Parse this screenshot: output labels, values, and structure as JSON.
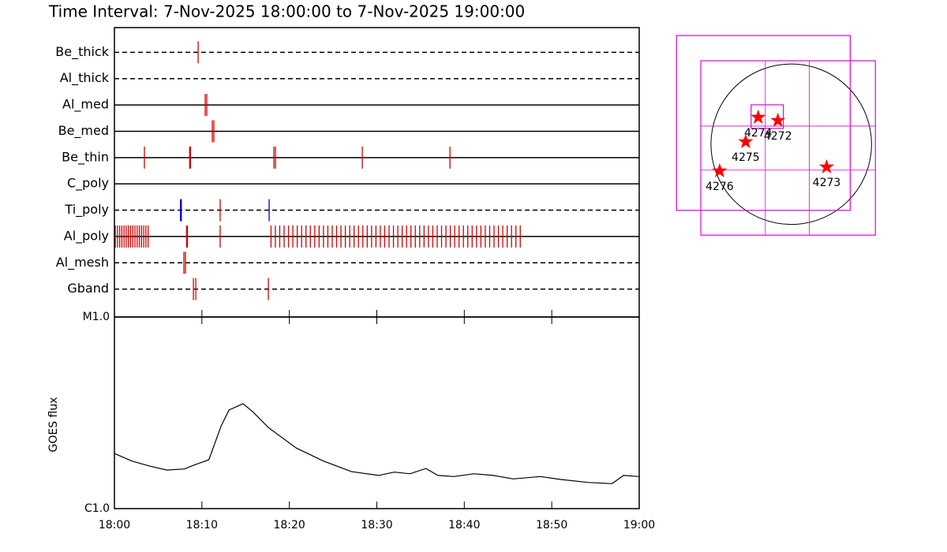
{
  "chart_data": [
    {
      "type": "timeline",
      "title": "Time Interval:  7-Nov-2025 18:00:00 to  7-Nov-2025 19:00:00",
      "xlim": [
        0,
        60
      ],
      "color": "#d00000",
      "rows": [
        {
          "name": "Be_thick",
          "line": "dashed",
          "events": [
            9.57
          ]
        },
        {
          "name": "Al_thick",
          "line": "dashed",
          "events": []
        },
        {
          "name": "Al_med",
          "line": "solid",
          "events": [
            10.38,
            10.56
          ]
        },
        {
          "name": "Be_med",
          "line": "solid",
          "events": [
            11.19,
            11.37
          ]
        },
        {
          "name": "Be_thin",
          "line": "solid",
          "events": [
            3.43,
            8.6,
            8.7,
            18.23,
            18.41,
            28.34,
            38.36
          ]
        },
        {
          "name": "C_poly",
          "line": "solid",
          "events": []
        },
        {
          "name": "Ti_poly",
          "line": "dashed",
          "events": [
            7.55,
            7.65,
            12.09,
            17.69
          ],
          "event_colors": [
            "#0000cc",
            "#0000cc",
            "#d00000",
            "#0000cc"
          ]
        },
        {
          "name": "Al_poly",
          "line": "solid",
          "events": [
            0.1,
            0.35,
            0.6,
            0.85,
            1.1,
            1.35,
            1.6,
            1.85,
            2.1,
            2.35,
            2.6,
            2.85,
            3.1,
            3.35,
            3.6,
            3.85,
            8.25,
            8.35,
            12.09,
            17.9,
            18.4,
            18.9,
            19.4,
            19.9,
            20.4,
            20.9,
            21.4,
            21.9,
            22.4,
            22.9,
            23.4,
            23.9,
            24.4,
            24.9,
            25.4,
            25.9,
            26.4,
            26.9,
            27.4,
            27.9,
            28.4,
            28.9,
            29.4,
            29.9,
            30.4,
            30.9,
            31.4,
            31.9,
            32.4,
            32.9,
            33.4,
            33.9,
            34.4,
            34.9,
            35.4,
            35.9,
            36.4,
            36.9,
            37.4,
            37.9,
            38.4,
            38.9,
            39.4,
            39.9,
            40.4,
            40.9,
            41.4,
            41.9,
            42.4,
            42.9,
            43.4,
            43.9,
            44.4,
            44.9,
            45.4,
            45.9,
            46.4
          ]
        },
        {
          "name": "Al_mesh",
          "line": "dashed",
          "events": [
            7.94,
            8.12
          ]
        },
        {
          "name": "Gband",
          "line": "dashed",
          "events": [
            9.03,
            9.3,
            17.6
          ]
        }
      ]
    },
    {
      "type": "line",
      "y_label": "GOES flux",
      "log": true,
      "color": "#000000",
      "xlim": [
        0,
        60
      ],
      "xticks": [
        {
          "value": 0,
          "label": "18:00"
        },
        {
          "value": 10,
          "label": "18:10"
        },
        {
          "value": 20,
          "label": "18:20"
        },
        {
          "value": 30,
          "label": "18:30"
        },
        {
          "value": 40,
          "label": "18:40"
        },
        {
          "value": 50,
          "label": "18:50"
        },
        {
          "value": 60,
          "label": "19:00"
        }
      ],
      "ylim": [
        1e-06,
        1e-05
      ],
      "yticks": [
        {
          "value": 1e-06,
          "label": "C1.0"
        },
        {
          "value": 1e-05,
          "label": "M1.0"
        }
      ],
      "x": [
        0,
        2,
        4,
        6,
        8,
        9,
        10.8,
        12.2,
        13.1,
        14.7,
        15.8,
        17.6,
        20.8,
        23.9,
        27.1,
        30.2,
        32.0,
        33.8,
        35.6,
        37.0,
        38.8,
        41.1,
        43.3,
        45.6,
        48.7,
        51.0,
        54.2,
        56.9,
        58.2,
        60
      ],
      "values": [
        1.94e-06,
        1.77e-06,
        1.67e-06,
        1.59e-06,
        1.61e-06,
        1.68e-06,
        1.8e-06,
        2.7e-06,
        3.27e-06,
        3.53e-06,
        3.21e-06,
        2.65e-06,
        2.07e-06,
        1.77e-06,
        1.56e-06,
        1.49e-06,
        1.55e-06,
        1.52e-06,
        1.62e-06,
        1.49e-06,
        1.47e-06,
        1.52e-06,
        1.49e-06,
        1.43e-06,
        1.47e-06,
        1.42e-06,
        1.37e-06,
        1.35e-06,
        1.49e-06,
        1.47e-06
      ]
    },
    {
      "type": "map",
      "xlim": [
        -1440,
        1060
      ],
      "ylim": [
        -1150,
        1345
      ],
      "disk_radius": 960,
      "fov_color": "#e000e0",
      "star_color": "#ff0000",
      "fovs": [
        {
          "x": [
            -1372,
            705
          ],
          "y": [
            -790,
            1297
          ]
        },
        {
          "x": [
            -1081,
            1006
          ],
          "y": [
            -1086,
            996
          ],
          "grid_x": [
            -310,
            216
          ],
          "grid_y": [
            -310,
            216
          ]
        },
        {
          "x": [
            -480,
            -94
          ],
          "y": [
            188,
            470
          ]
        }
      ],
      "regions": [
        {
          "label": "4274",
          "x": -395,
          "y": 320
        },
        {
          "label": "4272",
          "x": -160,
          "y": 282
        },
        {
          "label": "4275",
          "x": -545,
          "y": 28
        },
        {
          "label": "4276",
          "x": -856,
          "y": -320
        },
        {
          "label": "4273",
          "x": 423,
          "y": -273
        }
      ]
    }
  ]
}
